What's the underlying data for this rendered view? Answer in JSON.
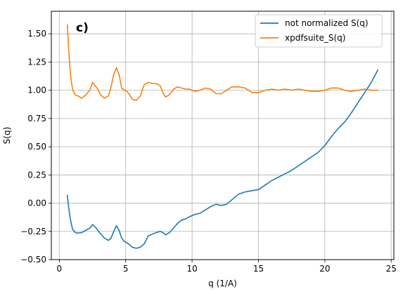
{
  "chart_data": {
    "type": "line",
    "panel_label": "c)",
    "xlabel": "q (1/A)",
    "ylabel": "S(q)",
    "xlim": [
      -0.6,
      25.2
    ],
    "ylim": [
      -0.5,
      1.7
    ],
    "xticks": [
      0,
      5,
      10,
      15,
      20,
      25
    ],
    "yticks": [
      -0.5,
      -0.25,
      0.0,
      0.25,
      0.5,
      0.75,
      1.0,
      1.25,
      1.5
    ],
    "ytick_labels": [
      "−0.50",
      "−0.25",
      "0.00",
      "0.25",
      "0.50",
      "0.75",
      "1.00",
      "1.25",
      "1.50"
    ],
    "grid": true,
    "legend_position": "top-right",
    "series": [
      {
        "name": "not normalized S(q)",
        "color": "#1f77b4",
        "x": [
          0.6,
          0.7,
          0.8,
          0.9,
          1.0,
          1.2,
          1.4,
          1.7,
          2.0,
          2.3,
          2.5,
          2.7,
          2.9,
          3.1,
          3.4,
          3.7,
          3.9,
          4.1,
          4.3,
          4.5,
          4.7,
          4.9,
          5.1,
          5.3,
          5.5,
          5.8,
          6.1,
          6.4,
          6.7,
          7.0,
          7.3,
          7.6,
          7.8,
          8.0,
          8.3,
          8.6,
          8.9,
          9.2,
          9.5,
          9.8,
          10.2,
          10.6,
          11.0,
          11.4,
          11.8,
          12.2,
          12.6,
          13.0,
          13.5,
          14.0,
          14.5,
          15.0,
          15.5,
          16.0,
          16.5,
          17.0,
          17.5,
          18.0,
          18.5,
          19.0,
          19.5,
          20.0,
          20.5,
          21.0,
          21.5,
          22.0,
          22.5,
          23.0,
          23.5,
          24.0
        ],
        "y": [
          0.07,
          -0.03,
          -0.12,
          -0.18,
          -0.23,
          -0.26,
          -0.265,
          -0.26,
          -0.24,
          -0.22,
          -0.19,
          -0.21,
          -0.24,
          -0.27,
          -0.31,
          -0.33,
          -0.31,
          -0.25,
          -0.2,
          -0.24,
          -0.31,
          -0.34,
          -0.35,
          -0.37,
          -0.39,
          -0.4,
          -0.39,
          -0.36,
          -0.29,
          -0.275,
          -0.26,
          -0.25,
          -0.26,
          -0.28,
          -0.26,
          -0.22,
          -0.18,
          -0.15,
          -0.14,
          -0.12,
          -0.1,
          -0.09,
          -0.06,
          -0.03,
          -0.01,
          -0.02,
          -0.01,
          0.03,
          0.08,
          0.1,
          0.11,
          0.12,
          0.16,
          0.2,
          0.23,
          0.26,
          0.29,
          0.33,
          0.37,
          0.41,
          0.45,
          0.51,
          0.59,
          0.66,
          0.72,
          0.8,
          0.89,
          0.98,
          1.07,
          1.18
        ]
      },
      {
        "name": "xpdfsuite_S(q)",
        "color": "#ff7f0e",
        "x": [
          0.6,
          0.7,
          0.8,
          0.9,
          1.0,
          1.1,
          1.2,
          1.4,
          1.7,
          2.0,
          2.3,
          2.5,
          2.7,
          2.9,
          3.1,
          3.4,
          3.7,
          3.9,
          4.1,
          4.3,
          4.5,
          4.7,
          4.9,
          5.1,
          5.3,
          5.5,
          5.8,
          6.1,
          6.4,
          6.7,
          7.0,
          7.3,
          7.6,
          7.8,
          8.0,
          8.3,
          8.6,
          8.9,
          9.2,
          9.5,
          9.8,
          10.2,
          10.6,
          11.0,
          11.4,
          11.8,
          12.2,
          12.6,
          13.0,
          13.5,
          14.0,
          14.5,
          15.0,
          15.5,
          16.0,
          16.5,
          17.0,
          17.5,
          18.0,
          18.5,
          19.0,
          19.5,
          20.0,
          20.5,
          21.0,
          21.5,
          22.0,
          22.5,
          23.0,
          23.5,
          24.0
        ],
        "y": [
          1.58,
          1.38,
          1.2,
          1.08,
          1.01,
          0.98,
          0.96,
          0.95,
          0.93,
          0.96,
          1.0,
          1.07,
          1.04,
          1.01,
          0.96,
          0.93,
          0.95,
          1.03,
          1.14,
          1.2,
          1.14,
          1.02,
          1.0,
          0.99,
          0.96,
          0.92,
          0.91,
          0.95,
          1.05,
          1.07,
          1.06,
          1.06,
          1.04,
          0.98,
          0.94,
          0.96,
          1.01,
          1.03,
          1.02,
          1.01,
          1.01,
          0.99,
          1.0,
          1.02,
          1.01,
          0.97,
          0.97,
          1.0,
          1.03,
          1.03,
          1.02,
          0.98,
          0.98,
          1.0,
          1.01,
          1.0,
          1.01,
          1.0,
          1.01,
          1.0,
          0.99,
          0.99,
          1.0,
          1.02,
          1.02,
          1.0,
          0.99,
          1.0,
          1.01,
          1.0,
          1.0
        ]
      }
    ]
  }
}
